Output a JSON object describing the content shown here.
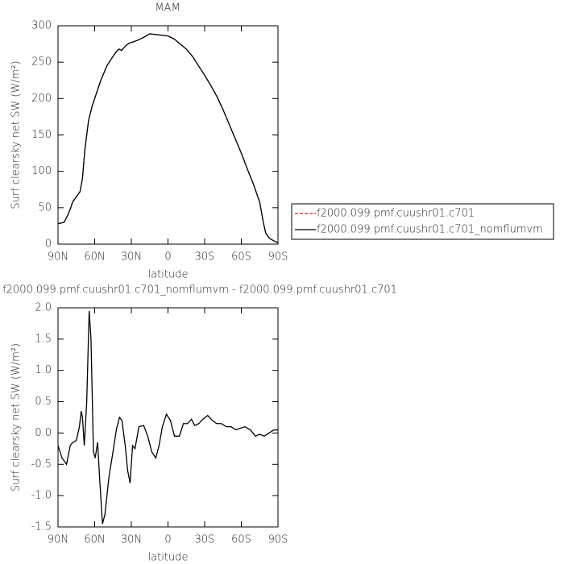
{
  "chart_data": [
    {
      "type": "line",
      "title": "MAM",
      "xlabel": "latitude",
      "ylabel": "Surf clearsky net SW (W/m²)",
      "xlim": [
        90,
        -90
      ],
      "xticks": [
        {
          "value": 90,
          "label": "90N"
        },
        {
          "value": 60,
          "label": "60N"
        },
        {
          "value": 30,
          "label": "30N"
        },
        0,
        {
          "value": -30,
          "label": "30S"
        },
        {
          "value": -60,
          "label": "60S"
        },
        {
          "value": -90,
          "label": "90S"
        }
      ],
      "ylim": [
        0,
        300
      ],
      "yticks": [
        0,
        50,
        100,
        150,
        200,
        250,
        300
      ],
      "legend": "outside right",
      "x": [
        90,
        85,
        82,
        80,
        78,
        75,
        72,
        70,
        68,
        65,
        62,
        60,
        55,
        50,
        45,
        42,
        40,
        38,
        35,
        32,
        30,
        25,
        20,
        15,
        10,
        5,
        0,
        -5,
        -10,
        -15,
        -20,
        -25,
        -30,
        -35,
        -40,
        -45,
        -50,
        -55,
        -60,
        -65,
        -70,
        -75,
        -78,
        -80,
        -83,
        -86,
        -90
      ],
      "series": [
        {
          "name": "f2000.099.pmf.cuushr01.c701",
          "color": "#d62020",
          "linestyle": "dashed",
          "values": [
            28,
            30,
            40,
            48,
            58,
            65,
            72,
            90,
            130,
            170,
            190,
            200,
            225,
            245,
            258,
            265,
            268,
            266,
            272,
            276,
            277,
            280,
            284,
            289,
            288,
            287,
            286,
            282,
            275,
            268,
            258,
            245,
            232,
            218,
            203,
            185,
            165,
            145,
            125,
            103,
            82,
            58,
            30,
            15,
            8,
            5,
            2
          ]
        },
        {
          "name": "f2000.099.pmf.cuushr01.c701_nomflumvm",
          "color": "#000000",
          "linestyle": "solid",
          "values": [
            28,
            30,
            40,
            48,
            58,
            65,
            72,
            90,
            130,
            170,
            190,
            200,
            225,
            245,
            258,
            265,
            268,
            266,
            272,
            276,
            277,
            280,
            284,
            289,
            288,
            287,
            286,
            282,
            275,
            268,
            258,
            245,
            232,
            218,
            203,
            185,
            165,
            145,
            125,
            103,
            82,
            58,
            30,
            15,
            8,
            5,
            2
          ]
        }
      ]
    },
    {
      "type": "line",
      "title": "f2000.099.pmf.cuushr01.c701_nomflumvm - f2000.099.pmf.cuushr01.c701",
      "xlabel": "latitude",
      "ylabel": "Surf clearsky net SW (W/m²)",
      "xlim": [
        90,
        -90
      ],
      "xticks": [
        {
          "value": 90,
          "label": "90N"
        },
        {
          "value": 60,
          "label": "60N"
        },
        {
          "value": 30,
          "label": "30N"
        },
        0,
        {
          "value": -30,
          "label": "30S"
        },
        {
          "value": -60,
          "label": "60S"
        },
        {
          "value": -90,
          "label": "90S"
        }
      ],
      "ylim": [
        -1.5,
        2
      ],
      "yticks": [
        {
          "value": -1.5,
          "label": "-1.5"
        },
        {
          "value": -1,
          "label": "-1.0"
        },
        -0.5,
        {
          "value": 0,
          "label": "0.0"
        },
        0.5,
        {
          "value": 1,
          "label": "1.0"
        },
        1.5,
        {
          "value": 2,
          "label": "2.0"
        }
      ],
      "x": [
        90,
        86.7,
        83,
        80,
        78,
        75,
        72.5,
        71,
        70,
        68.5,
        66.5,
        64.5,
        63,
        61,
        59.6,
        57.6,
        55.7,
        53.6,
        51.6,
        48.3,
        45,
        42.3,
        39.7,
        37.7,
        35,
        33,
        31,
        29,
        27,
        23.8,
        19.9,
        16.6,
        13.3,
        10,
        7.3,
        4.6,
        1.3,
        -2,
        -5.3,
        -9.3,
        -12.6,
        -15.9,
        -19.2,
        -21.9,
        -25.2,
        -28.5,
        -32.5,
        -36.4,
        -39.8,
        -43.7,
        -47.7,
        -51.7,
        -55.6,
        -59.6,
        -62.9,
        -67.5,
        -71.5,
        -74.8,
        -78.8,
        -82.7,
        -86.7,
        -90
      ],
      "series": [
        {
          "color": "#000000",
          "linestyle": "solid",
          "values": [
            -0.2,
            -0.4,
            -0.5,
            -0.2,
            -0.15,
            -0.12,
            0.1,
            0.35,
            0.25,
            -0.2,
            0.5,
            1.95,
            1.5,
            -0.3,
            -0.4,
            -0.15,
            -0.8,
            -1.45,
            -1.3,
            -0.7,
            -0.3,
            0.05,
            0.25,
            0.2,
            -0.2,
            -0.6,
            -0.8,
            -0.2,
            -0.25,
            0.1,
            0.12,
            -0.05,
            -0.3,
            -0.4,
            -0.2,
            0.1,
            0.3,
            0.2,
            -0.05,
            -0.05,
            0.15,
            0.15,
            0.22,
            0.12,
            0.15,
            0.22,
            0.28,
            0.2,
            0.15,
            0.15,
            0.1,
            0.1,
            0.05,
            0.08,
            0.1,
            0.05,
            -0.05,
            -0.02,
            -0.05,
            0,
            0.05,
            0.05
          ]
        }
      ]
    }
  ]
}
